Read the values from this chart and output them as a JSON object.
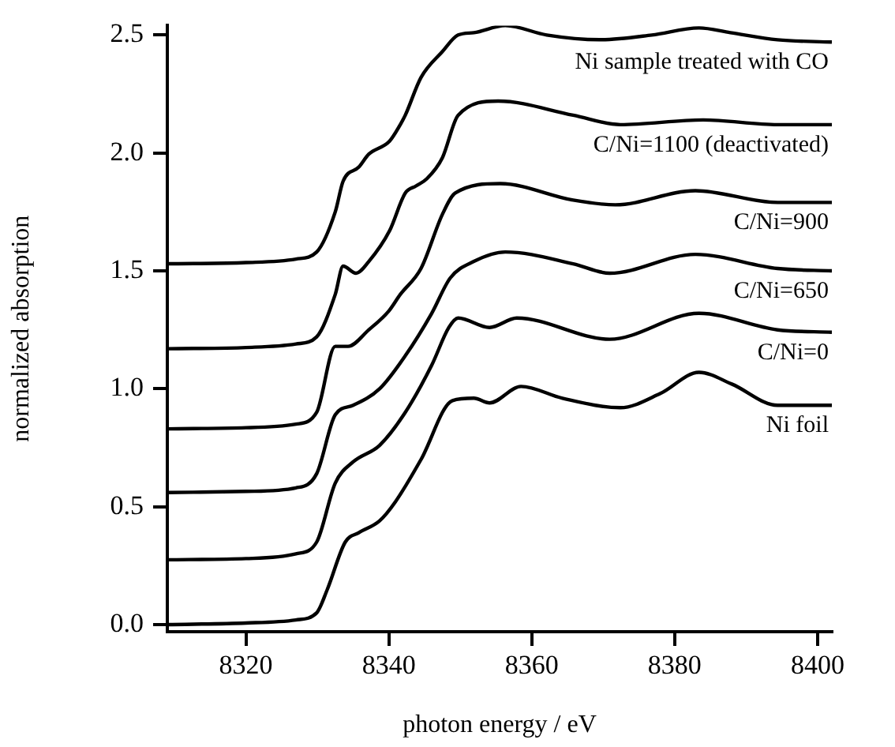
{
  "chart_data": {
    "type": "line",
    "xlabel": "photon energy / eV",
    "ylabel": "normalized absorption",
    "xlim": [
      8309,
      8402
    ],
    "ylim": [
      -0.03,
      2.54
    ],
    "xticks": [
      8320,
      8340,
      8360,
      8380,
      8400
    ],
    "yticks": [
      {
        "value": 0,
        "label": "0.0"
      },
      {
        "value": 0.5,
        "label": "0.5"
      },
      {
        "value": 1,
        "label": "1.0"
      },
      {
        "value": 1.5,
        "label": "1.5"
      },
      {
        "value": 2,
        "label": "2.0"
      },
      {
        "value": 2.5,
        "label": "2.5"
      }
    ],
    "grid": false,
    "legend": false,
    "marker": "none",
    "line_style": "solid",
    "series": [
      {
        "name": "Ni sample treated with CO",
        "color": "#000000",
        "x": [
          8309,
          8320,
          8327,
          8329.9,
          8332.5,
          8333.6,
          8335.8,
          8337.2,
          8340.1,
          8341.6,
          8342.3,
          8344.5,
          8347.5,
          8349.7,
          8351.9,
          8356.3,
          8362.1,
          8369.5,
          8376.8,
          8383.4,
          8387.8,
          8394.4,
          8402
        ],
        "values": [
          1.53,
          1.535,
          1.55,
          1.58,
          1.75,
          1.88,
          1.94,
          1.995,
          2.05,
          2.12,
          2.16,
          2.32,
          2.43,
          2.5,
          2.51,
          2.54,
          2.5,
          2.48,
          2.5,
          2.53,
          2.51,
          2.48,
          2.47
        ]
      },
      {
        "name": "C/Ni=1100 (deactivated)",
        "color": "#000000",
        "x": [
          8309,
          8320,
          8327,
          8329.9,
          8332.5,
          8333.6,
          8335.4,
          8337.2,
          8340.1,
          8342.3,
          8343.8,
          8345.3,
          8347.5,
          8349.7,
          8355.3,
          8365.8,
          8372.4,
          8384,
          8394.4,
          8402
        ],
        "values": [
          1.17,
          1.175,
          1.19,
          1.22,
          1.4,
          1.52,
          1.49,
          1.54,
          1.67,
          1.83,
          1.86,
          1.89,
          1.98,
          2.16,
          2.22,
          2.16,
          2.12,
          2.14,
          2.12,
          2.12
        ]
      },
      {
        "name": "C/Ni=900",
        "color": "#000000",
        "x": [
          8309,
          8320,
          8327,
          8329.9,
          8332.5,
          8334.3,
          8337.2,
          8340,
          8341.6,
          8344.5,
          8347.5,
          8349.3,
          8355.6,
          8365.8,
          8371.7,
          8382.9,
          8394.4,
          8402
        ],
        "values": [
          0.83,
          0.835,
          0.85,
          0.9,
          1.18,
          1.18,
          1.25,
          1.33,
          1.4,
          1.51,
          1.74,
          1.83,
          1.87,
          1.8,
          1.78,
          1.84,
          1.79,
          1.79
        ]
      },
      {
        "name": "C/Ni=650",
        "color": "#000000",
        "x": [
          8309,
          8320,
          8327,
          8329.9,
          8332.5,
          8335,
          8338.7,
          8342.3,
          8346,
          8348.6,
          8351.9,
          8356.3,
          8365.8,
          8370.9,
          8382.9,
          8394.4,
          8402
        ],
        "values": [
          0.56,
          0.565,
          0.58,
          0.64,
          0.89,
          0.93,
          1.0,
          1.14,
          1.32,
          1.47,
          1.54,
          1.58,
          1.53,
          1.49,
          1.57,
          1.51,
          1.5
        ]
      },
      {
        "name": "C/Ni=0",
        "color": "#000000",
        "x": [
          8309,
          8320,
          8327,
          8329.9,
          8332.5,
          8335,
          8338.7,
          8342.3,
          8346,
          8348.4,
          8349.7,
          8354.1,
          8357.9,
          8370.9,
          8383.4,
          8394.4,
          8402
        ],
        "values": [
          0.275,
          0.28,
          0.3,
          0.35,
          0.6,
          0.69,
          0.76,
          0.9,
          1.1,
          1.26,
          1.3,
          1.26,
          1.3,
          1.21,
          1.32,
          1.25,
          1.24
        ]
      },
      {
        "name": "Ni foil",
        "color": "#000000",
        "x": [
          8309,
          8320,
          8327,
          8329.9,
          8331.4,
          8333.9,
          8335.8,
          8338.7,
          8340.9,
          8344.5,
          8348.9,
          8351.9,
          8354.1,
          8358.5,
          8364.3,
          8372.4,
          8378,
          8383.4,
          8388,
          8394.4,
          8402
        ],
        "values": [
          0.0,
          0.007,
          0.02,
          0.05,
          0.15,
          0.35,
          0.39,
          0.44,
          0.52,
          0.7,
          0.95,
          0.96,
          0.94,
          1.01,
          0.96,
          0.92,
          0.98,
          1.07,
          1.02,
          0.93,
          0.93
        ]
      }
    ]
  }
}
